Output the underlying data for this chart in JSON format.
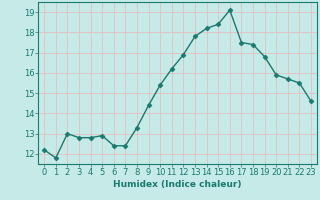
{
  "x": [
    0,
    1,
    2,
    3,
    4,
    5,
    6,
    7,
    8,
    9,
    10,
    11,
    12,
    13,
    14,
    15,
    16,
    17,
    18,
    19,
    20,
    21,
    22,
    23
  ],
  "y": [
    12.2,
    11.8,
    13.0,
    12.8,
    12.8,
    12.9,
    12.4,
    12.4,
    13.3,
    14.4,
    15.4,
    16.2,
    16.9,
    17.8,
    18.2,
    18.4,
    19.1,
    17.5,
    17.4,
    16.8,
    15.9,
    15.7,
    15.5,
    14.6
  ],
  "line_color": "#1a7a6e",
  "marker": "D",
  "marker_size": 2.5,
  "bg_color": "#c5eae8",
  "grid_color": "#e8b8b8",
  "axis_color": "#1a7a6e",
  "xlabel": "Humidex (Indice chaleur)",
  "xlabel_fontsize": 6.5,
  "tick_fontsize": 6,
  "ylim": [
    11.5,
    19.5
  ],
  "xlim": [
    -0.5,
    23.5
  ],
  "yticks": [
    12,
    13,
    14,
    15,
    16,
    17,
    18,
    19
  ],
  "xticks": [
    0,
    1,
    2,
    3,
    4,
    5,
    6,
    7,
    8,
    9,
    10,
    11,
    12,
    13,
    14,
    15,
    16,
    17,
    18,
    19,
    20,
    21,
    22,
    23
  ],
  "xtick_labels": [
    "0",
    "1",
    "2",
    "3",
    "4",
    "5",
    "6",
    "7",
    "8",
    "9",
    "10",
    "11",
    "12",
    "13",
    "14",
    "15",
    "16",
    "17",
    "18",
    "19",
    "20",
    "21",
    "22",
    "23"
  ]
}
